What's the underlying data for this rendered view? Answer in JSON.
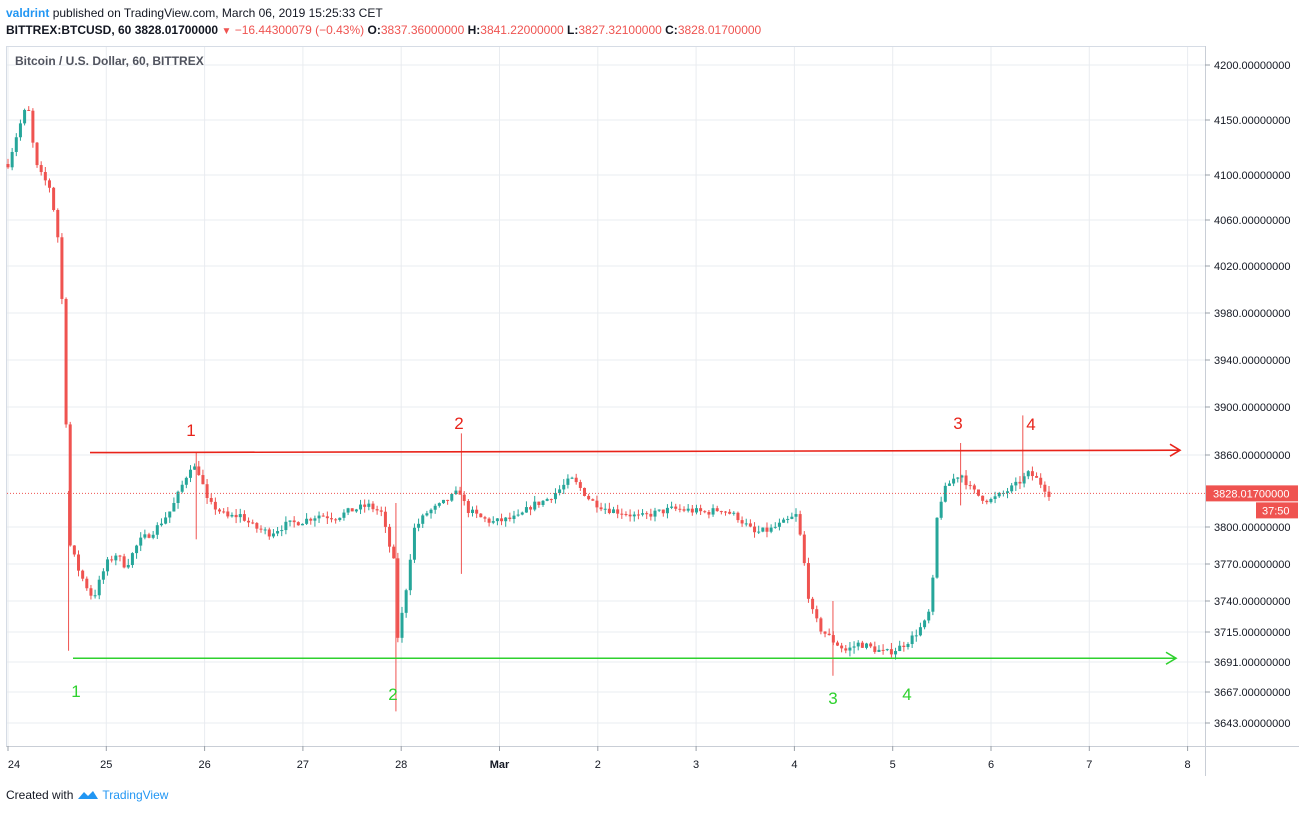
{
  "header": {
    "user": "valdrint",
    "published_text": "published on TradingView.com, March 06, 2019 15:25:33 CET",
    "symbol": "BITTREX:BTCUSD, 60",
    "last": "3828.01700000",
    "change": "−16.44300079 (−0.43%)",
    "o_label": "O:",
    "o_value": "3837.36000000",
    "h_label": "H:",
    "h_value": "3841.22000000",
    "l_label": "L:",
    "l_value": "3827.32100000",
    "c_label": "C:",
    "c_value": "3828.01700000"
  },
  "footer": {
    "created_with": "Created with",
    "brand": "TradingView"
  },
  "chart_data": {
    "type": "candlestick",
    "title": "Bitcoin / U.S. Dollar, 60, BITTREX",
    "y_ticks": [
      3643,
      3667,
      3691,
      3715,
      3740,
      3770,
      3800,
      3860,
      3900,
      3940,
      3980,
      4020,
      4060,
      4100,
      4150,
      4200
    ],
    "y_tick_labels": [
      "3643.00000000",
      "3667.00000000",
      "3691.00000000",
      "3715.00000000",
      "3740.00000000",
      "3770.00000000",
      "3800.00000000",
      "3860.00000000",
      "3900.00000000",
      "3940.00000000",
      "3980.00000000",
      "4020.00000000",
      "4060.00000000",
      "4100.00000000",
      "4150.00000000",
      "4200.00000000"
    ],
    "x_ticks": [
      "24",
      "25",
      "26",
      "27",
      "28",
      "Mar",
      "2",
      "3",
      "4",
      "5",
      "6",
      "7",
      "8"
    ],
    "last_price_label": "3828.01700000",
    "countdown_label": "37:50",
    "colors": {
      "up": "#26a69a",
      "down": "#ef5350",
      "resistance": "#e8231a",
      "support": "#2ed12e",
      "grid": "#e9ecf0"
    },
    "resistance": {
      "start_value": 3862,
      "end_value": 3864,
      "labels": [
        "1",
        "2",
        "3",
        "4"
      ]
    },
    "support": {
      "value": 3694,
      "labels": [
        "1",
        "2",
        "3",
        "4"
      ]
    },
    "path_points": [
      [
        0,
        4110
      ],
      [
        0.3,
        4140
      ],
      [
        0.6,
        4165
      ],
      [
        0.75,
        4130
      ],
      [
        0.9,
        4105
      ],
      [
        1.3,
        4088
      ],
      [
        1.6,
        4030
      ],
      [
        1.9,
        3785
      ],
      [
        2.2,
        3762
      ],
      [
        2.6,
        3742
      ],
      [
        3.0,
        3770
      ],
      [
        3.3,
        3778
      ],
      [
        3.6,
        3768
      ],
      [
        4.0,
        3788
      ],
      [
        4.5,
        3798
      ],
      [
        5.0,
        3815
      ],
      [
        5.6,
        3852
      ],
      [
        5.85,
        3845
      ],
      [
        6.1,
        3820
      ],
      [
        6.4,
        3815
      ],
      [
        6.7,
        3808
      ],
      [
        7.1,
        3810
      ],
      [
        7.5,
        3800
      ],
      [
        8.0,
        3795
      ],
      [
        8.5,
        3802
      ],
      [
        9.0,
        3805
      ],
      [
        9.5,
        3810
      ],
      [
        10.0,
        3808
      ],
      [
        10.5,
        3814
      ],
      [
        11.0,
        3818
      ],
      [
        11.4,
        3812
      ],
      [
        11.6,
        3790
      ],
      [
        11.8,
        3770
      ],
      [
        11.9,
        3710
      ],
      [
        12.1,
        3738
      ],
      [
        12.4,
        3798
      ],
      [
        12.8,
        3812
      ],
      [
        13.2,
        3818
      ],
      [
        13.6,
        3826
      ],
      [
        13.8,
        3830
      ],
      [
        14.0,
        3815
      ],
      [
        14.4,
        3808
      ],
      [
        14.8,
        3804
      ],
      [
        15.2,
        3806
      ],
      [
        15.6,
        3808
      ],
      [
        16.0,
        3818
      ],
      [
        16.4,
        3822
      ],
      [
        16.8,
        3830
      ],
      [
        17.2,
        3840
      ],
      [
        17.4,
        3835
      ],
      [
        17.8,
        3822
      ],
      [
        18.3,
        3815
      ],
      [
        18.8,
        3812
      ],
      [
        19.3,
        3808
      ],
      [
        19.8,
        3812
      ],
      [
        20.3,
        3815
      ],
      [
        20.8,
        3814
      ],
      [
        21.3,
        3812
      ],
      [
        21.8,
        3815
      ],
      [
        22.3,
        3808
      ],
      [
        22.8,
        3795
      ],
      [
        23.3,
        3798
      ],
      [
        23.8,
        3805
      ],
      [
        24.1,
        3810
      ],
      [
        24.3,
        3775
      ],
      [
        24.5,
        3735
      ],
      [
        24.8,
        3718
      ],
      [
        25.2,
        3708
      ],
      [
        25.6,
        3700
      ],
      [
        26.0,
        3706
      ],
      [
        26.4,
        3702
      ],
      [
        26.8,
        3698
      ],
      [
        27.2,
        3702
      ],
      [
        27.6,
        3710
      ],
      [
        28.0,
        3722
      ],
      [
        28.2,
        3735
      ],
      [
        28.4,
        3815
      ],
      [
        28.6,
        3830
      ],
      [
        28.8,
        3838
      ],
      [
        29.1,
        3845
      ],
      [
        29.4,
        3832
      ],
      [
        29.7,
        3825
      ],
      [
        30.0,
        3822
      ],
      [
        30.4,
        3828
      ],
      [
        30.8,
        3835
      ],
      [
        31.2,
        3845
      ],
      [
        31.5,
        3838
      ],
      [
        31.8,
        3828
      ]
    ],
    "spikes": [
      {
        "x": 1.85,
        "high": 3830,
        "low": 3700
      },
      {
        "x": 5.75,
        "high": 3862,
        "low": 3790
      },
      {
        "x": 11.85,
        "high": 3820,
        "low": 3652
      },
      {
        "x": 13.85,
        "high": 3878,
        "low": 3762
      },
      {
        "x": 25.2,
        "high": 3740,
        "low": 3680
      },
      {
        "x": 29.1,
        "high": 3870,
        "low": 3818
      },
      {
        "x": 31.0,
        "high": 3893,
        "low": 3838
      }
    ]
  }
}
